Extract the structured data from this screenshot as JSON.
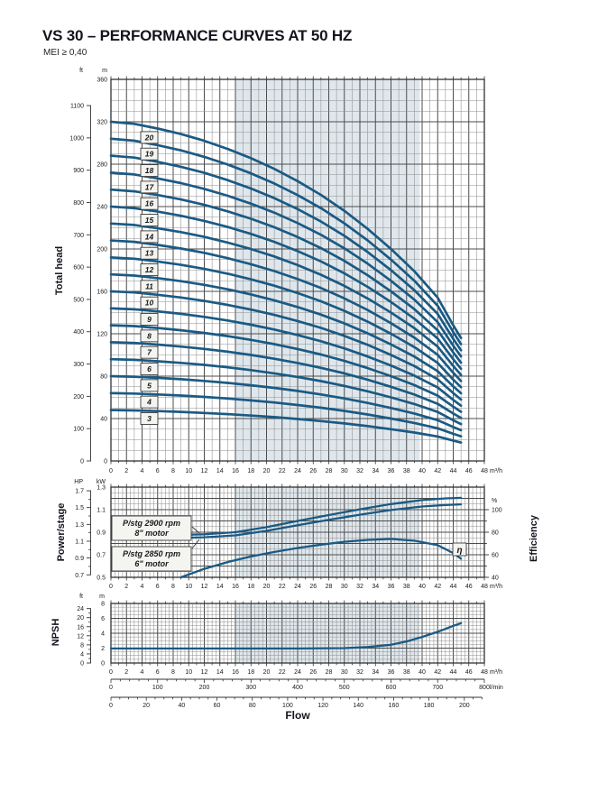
{
  "title": "VS 30 – PERFORMANCE CURVES AT 50 HZ",
  "subtitle": "MEI ≥ 0,40",
  "labels": {
    "total_head": "Total head",
    "power_stage": "Power/stage",
    "efficiency": "Efficiency",
    "npsh": "NPSH",
    "flow": "Flow",
    "unit_ft": "ft",
    "unit_m": "m",
    "unit_hp": "HP",
    "unit_kw": "kW",
    "unit_pct": "%",
    "unit_m3h": "m³/h",
    "unit_lmin": "l/min"
  },
  "colors": {
    "curve": "#1a5a84",
    "band": "#dfe7ec",
    "grid_minor": "#8f8f8f",
    "grid_major": "#4c4c4c",
    "border": "#333333",
    "text": "#1a1a1a",
    "box_bg": "#f4f4f1",
    "box_border": "#3c3c3c"
  },
  "chart_data": [
    {
      "type": "line",
      "title": "Total head vs Flow",
      "x": {
        "label": "Flow",
        "unit": "m³/h",
        "min": 0,
        "max": 48,
        "minor_step": 1,
        "ticks": [
          0,
          2,
          4,
          6,
          8,
          10,
          12,
          14,
          16,
          18,
          20,
          22,
          24,
          26,
          28,
          30,
          32,
          34,
          36,
          38,
          40,
          42,
          44,
          46,
          48
        ]
      },
      "y_m": {
        "unit": "m",
        "min": 0,
        "max": 360,
        "minor_step": 10,
        "ticks": [
          0,
          40,
          80,
          120,
          160,
          200,
          240,
          280,
          320,
          360
        ]
      },
      "y_ft": {
        "unit": "ft",
        "ticks": [
          0,
          100,
          200,
          300,
          400,
          500,
          600,
          700,
          800,
          900,
          1000,
          1100
        ]
      },
      "duty_band_m3h": [
        16,
        39.7
      ],
      "stages": [
        3,
        4,
        5,
        6,
        7,
        8,
        9,
        10,
        11,
        12,
        13,
        14,
        15,
        16,
        17,
        18,
        19,
        20
      ],
      "head_per_stage": {
        "note": "total head (m) = stages × head_per_stage; each curve spans 0–45 m³/h",
        "q_m3h": [
          0,
          3,
          6,
          9,
          12,
          15,
          18,
          21,
          24,
          27,
          30,
          33,
          36,
          39,
          42,
          44,
          45
        ],
        "head_m": [
          16.0,
          15.9,
          15.68,
          15.42,
          15.1,
          14.72,
          14.28,
          13.78,
          13.2,
          12.55,
          11.8,
          10.95,
          10.0,
          8.95,
          7.7,
          6.4,
          5.8
        ]
      },
      "stage_label_column_q": 4.85
    },
    {
      "type": "line",
      "title": "Power per stage and Efficiency vs Flow",
      "x": {
        "unit": "m³/h",
        "min": 0,
        "max": 48,
        "minor_step": 0.5,
        "ticks": [
          0,
          2,
          4,
          6,
          8,
          10,
          12,
          14,
          16,
          18,
          20,
          22,
          24,
          26,
          28,
          30,
          32,
          34,
          36,
          38,
          40,
          42,
          44,
          46,
          48
        ]
      },
      "y_kw": {
        "unit": "kW",
        "min": 0.5,
        "max": 1.3,
        "minor_step": 0.05,
        "ticks": [
          0.5,
          0.7,
          0.9,
          1.1,
          1.3
        ]
      },
      "y_hp": {
        "unit": "HP",
        "ticks": [
          0.7,
          0.9,
          1.1,
          1.3,
          1.5,
          1.7
        ]
      },
      "y_pct": {
        "unit": "%",
        "ticks": [
          40,
          60,
          80,
          100
        ]
      },
      "duty_band_m3h": [
        16,
        39.7
      ],
      "series": [
        {
          "id": "p2900",
          "label_lines": [
            "P/stg 2900 rpm",
            "8\" motor"
          ],
          "unit": "kW",
          "q_m3h": [
            8,
            12,
            16,
            20,
            24,
            28,
            32,
            36,
            40,
            43,
            45
          ],
          "values": [
            0.875,
            0.882,
            0.9,
            0.945,
            1.0,
            1.052,
            1.103,
            1.15,
            1.185,
            1.2,
            1.205
          ]
        },
        {
          "id": "p2850",
          "label_lines": [
            "P/stg 2850 rpm",
            "6\" motor"
          ],
          "unit": "kW",
          "q_m3h": [
            8,
            12,
            16,
            20,
            24,
            28,
            32,
            36,
            40,
            43,
            45
          ],
          "values": [
            0.848,
            0.855,
            0.872,
            0.912,
            0.962,
            1.01,
            1.055,
            1.097,
            1.128,
            1.142,
            1.147
          ]
        },
        {
          "id": "eta",
          "label": "η",
          "unit": "%",
          "q_m3h": [
            9,
            12,
            15,
            18,
            21,
            24,
            27,
            30,
            33,
            36,
            39,
            42,
            44,
            45
          ],
          "values": [
            40,
            47.5,
            53.5,
            58.5,
            62.5,
            66,
            69,
            71.5,
            73.2,
            74,
            72.5,
            68.5,
            61.5,
            56.5
          ]
        }
      ]
    },
    {
      "type": "line",
      "title": "NPSH vs Flow",
      "x": {
        "unit": "m³/h",
        "min": 0,
        "max": 48,
        "minor_step": 0.5,
        "ticks": [
          0,
          2,
          4,
          6,
          8,
          10,
          12,
          14,
          16,
          18,
          20,
          22,
          24,
          26,
          28,
          30,
          32,
          34,
          36,
          38,
          40,
          42,
          44,
          46,
          48
        ]
      },
      "y_m": {
        "unit": "m",
        "min": 0,
        "max": 8,
        "minor_step": 0.5,
        "ticks": [
          0,
          2,
          4,
          6,
          8
        ]
      },
      "y_ft": {
        "unit": "ft",
        "ticks": [
          0,
          4,
          8,
          12,
          16,
          20,
          24
        ]
      },
      "duty_band_m3h": [
        16,
        39.7
      ],
      "series": [
        {
          "id": "npsh",
          "label": "NPSH",
          "unit": "m",
          "q_m3h": [
            0,
            8,
            16,
            24,
            30,
            33,
            36,
            38,
            40,
            42,
            44,
            45
          ],
          "values": [
            1.95,
            1.95,
            1.95,
            1.95,
            2.0,
            2.15,
            2.45,
            2.9,
            3.5,
            4.2,
            5.0,
            5.35
          ]
        }
      ],
      "x_lmin": {
        "unit": "l/min",
        "m3h_per_unit": 0.06,
        "minor_step": 20,
        "ticks": [
          0,
          100,
          200,
          300,
          400,
          500,
          600,
          700,
          800
        ]
      },
      "x_gpm": {
        "unit": "",
        "m3h_per_unit": 0.22712,
        "minor_step": 5,
        "max": 210,
        "ticks": [
          0,
          20,
          40,
          60,
          80,
          100,
          120,
          140,
          160,
          180,
          200
        ]
      },
      "xlabel": "Flow"
    }
  ]
}
